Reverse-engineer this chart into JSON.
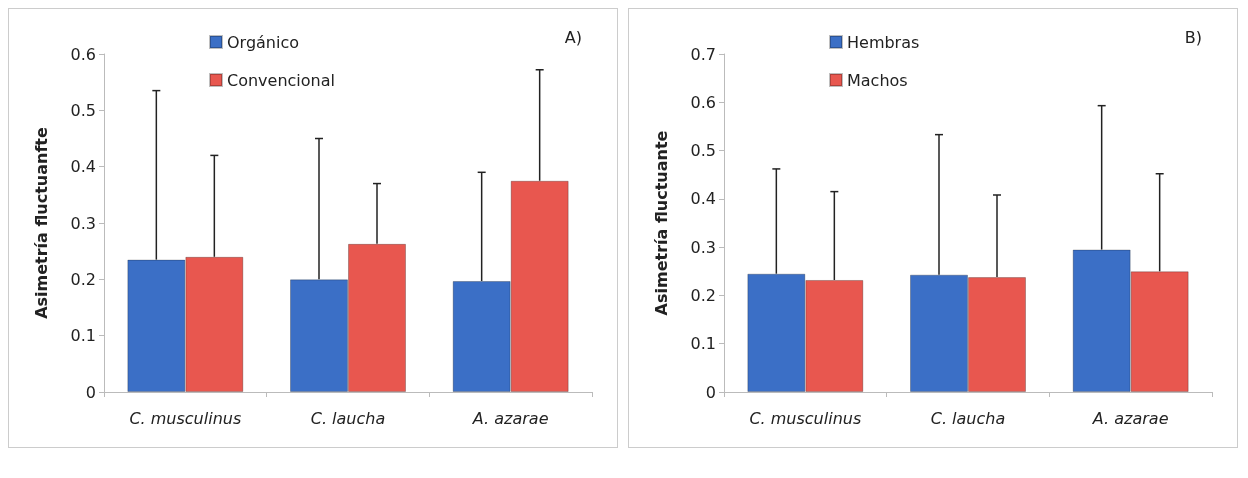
{
  "chart_data": [
    {
      "type": "bar",
      "ylabel": "Asimetría fluctuanfte",
      "categories": [
        "C. musculinus",
        "C. laucha",
        "A. azarae"
      ],
      "ylim": [
        0,
        0.6
      ],
      "yticks": [
        0,
        0.1,
        0.2,
        0.3,
        0.4,
        0.5,
        0.6
      ],
      "grid": false,
      "legend": "top left",
      "annotations": [
        "A)"
      ],
      "series": [
        {
          "name": "Orgánico",
          "color": "#3b6fc6",
          "values": [
            0.235,
            0.2,
            0.197
          ],
          "errors": [
            [
              0.235,
              0.535
            ],
            [
              0.2,
              0.45
            ],
            [
              0.197,
              0.39
            ]
          ]
        },
        {
          "name": "Convencional",
          "color": "#e8574f",
          "values": [
            0.24,
            0.263,
            0.375
          ],
          "errors": [
            [
              0.24,
              0.42
            ],
            [
              0.263,
              0.37
            ],
            [
              0.375,
              0.572
            ]
          ]
        }
      ]
    },
    {
      "type": "bar",
      "ylabel": "Asimetría fluctuante",
      "categories": [
        "C. musculinus",
        "C. laucha",
        "A. azarae"
      ],
      "ylim": [
        0,
        0.7
      ],
      "yticks": [
        0,
        0.1,
        0.2,
        0.3,
        0.4,
        0.5,
        0.6,
        0.7
      ],
      "grid": false,
      "legend": "top left",
      "annotations": [
        "B)"
      ],
      "series": [
        {
          "name": "Hembras",
          "color": "#3b6fc6",
          "values": [
            0.245,
            0.243,
            0.295
          ],
          "errors": [
            [
              0.245,
              0.462
            ],
            [
              0.243,
              0.533
            ],
            [
              0.295,
              0.593
            ]
          ]
        },
        {
          "name": "Machos",
          "color": "#e8574f",
          "values": [
            0.232,
            0.238,
            0.25
          ],
          "errors": [
            [
              0.232,
              0.415
            ],
            [
              0.238,
              0.408
            ],
            [
              0.25,
              0.452
            ]
          ]
        }
      ]
    }
  ]
}
